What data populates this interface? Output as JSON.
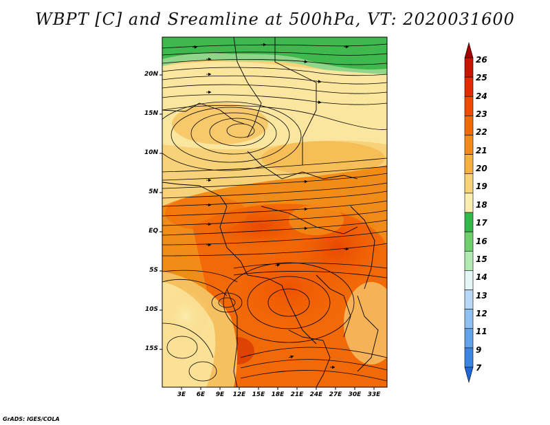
{
  "title": "WBPT [C] and Sreamline at 500hPa, VT: 2020031600",
  "credit": "GrADS: IGES/COLA",
  "lat_labels": [
    "20N",
    "15N",
    "10N",
    "5N",
    "EQ",
    "5S",
    "10S",
    "15S"
  ],
  "lon_labels": [
    "3E",
    "6E",
    "9E",
    "12E",
    "15E",
    "18E",
    "21E",
    "24E",
    "27E",
    "30E",
    "33E"
  ],
  "colorbar": {
    "labels": [
      "26",
      "25",
      "24",
      "23",
      "22",
      "21",
      "20",
      "19",
      "18",
      "17",
      "16",
      "15",
      "14",
      "13",
      "12",
      "11",
      "9",
      "7"
    ],
    "colors": [
      "#a50000",
      "#c81400",
      "#e42a00",
      "#f04a00",
      "#f26a08",
      "#f28c18",
      "#f5b040",
      "#f8d278",
      "#fbeeb0",
      "#35b84a",
      "#6dd06d",
      "#b2eab2",
      "#e4f6f6",
      "#b8d8f6",
      "#8ec0f2",
      "#62a2ea",
      "#3c86e2",
      "#1f66d6"
    ]
  }
}
